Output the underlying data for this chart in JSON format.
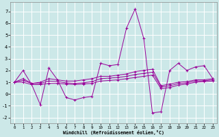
{
  "x": [
    0,
    1,
    2,
    3,
    4,
    5,
    6,
    7,
    8,
    9,
    10,
    11,
    12,
    13,
    14,
    15,
    16,
    17,
    18,
    19,
    20,
    21,
    22,
    23
  ],
  "y_main": [
    1.0,
    2.0,
    0.8,
    -0.9,
    2.2,
    1.2,
    -0.3,
    -0.5,
    -0.3,
    -0.2,
    2.6,
    2.4,
    2.5,
    5.6,
    7.2,
    4.7,
    -1.6,
    -1.5,
    2.0,
    2.6,
    2.0,
    2.3,
    2.4,
    1.3
  ],
  "y_line2": [
    1.0,
    1.3,
    0.9,
    1.0,
    1.3,
    1.2,
    1.1,
    1.1,
    1.2,
    1.3,
    1.5,
    1.5,
    1.6,
    1.7,
    1.9,
    2.0,
    2.1,
    0.7,
    0.85,
    1.0,
    1.05,
    1.2,
    1.2,
    1.3
  ],
  "y_line3": [
    1.0,
    1.0,
    0.8,
    0.8,
    0.9,
    0.9,
    0.85,
    0.8,
    0.85,
    0.9,
    1.1,
    1.15,
    1.2,
    1.3,
    1.4,
    1.5,
    1.6,
    0.45,
    0.55,
    0.75,
    0.85,
    1.0,
    1.05,
    1.1
  ],
  "y_line4": [
    1.0,
    1.15,
    0.9,
    0.9,
    1.1,
    1.05,
    0.95,
    0.9,
    0.95,
    1.05,
    1.3,
    1.35,
    1.4,
    1.5,
    1.65,
    1.75,
    1.85,
    0.6,
    0.7,
    0.88,
    0.95,
    1.1,
    1.12,
    1.2
  ],
  "line_color": "#990099",
  "bg_color": "#cce8e8",
  "xlabel": "Windchill (Refroidissement éolien,°C)",
  "ylim": [
    -2.5,
    7.8
  ],
  "xlim": [
    -0.5,
    23.5
  ],
  "yticks": [
    -2,
    -1,
    0,
    1,
    2,
    3,
    4,
    5,
    6,
    7
  ],
  "xticks": [
    0,
    1,
    2,
    3,
    4,
    5,
    6,
    7,
    8,
    9,
    10,
    11,
    12,
    13,
    14,
    15,
    16,
    17,
    18,
    19,
    20,
    21,
    22,
    23
  ]
}
